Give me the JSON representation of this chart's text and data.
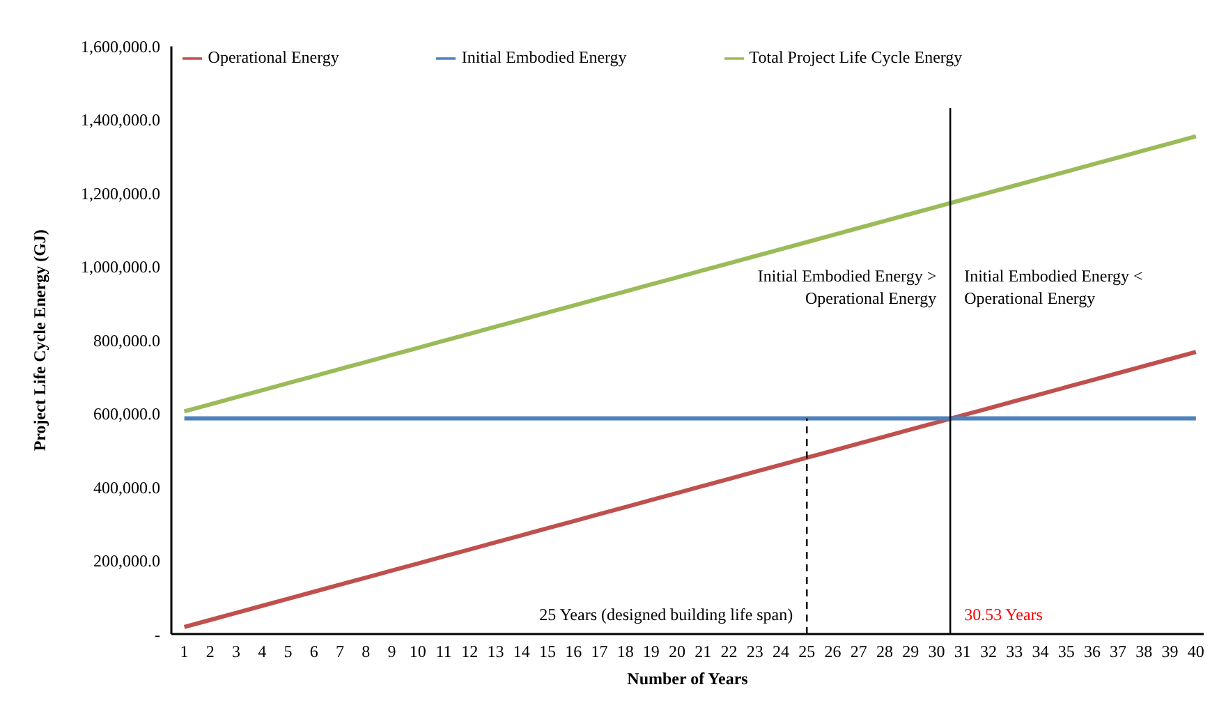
{
  "chart_data": {
    "type": "line",
    "xlabel": "Number of Years",
    "ylabel": "Project Life Cycle Energy (GJ)",
    "x": [
      1,
      2,
      3,
      4,
      5,
      6,
      7,
      8,
      9,
      10,
      11,
      12,
      13,
      14,
      15,
      16,
      17,
      18,
      19,
      20,
      21,
      22,
      23,
      24,
      25,
      26,
      27,
      28,
      29,
      30,
      31,
      32,
      33,
      34,
      35,
      36,
      37,
      38,
      39,
      40
    ],
    "xlim": [
      0.5,
      40.3
    ],
    "xticks": [
      1,
      2,
      3,
      4,
      5,
      6,
      7,
      8,
      9,
      10,
      11,
      12,
      13,
      14,
      15,
      16,
      17,
      18,
      19,
      20,
      21,
      22,
      23,
      24,
      25,
      26,
      27,
      28,
      29,
      30,
      31,
      32,
      33,
      34,
      35,
      36,
      37,
      38,
      39,
      40
    ],
    "ylim": [
      0,
      1600000
    ],
    "yticks": [
      {
        "value": 0,
        "label": "-"
      },
      {
        "value": 200000,
        "label": "200,000.0"
      },
      {
        "value": 400000,
        "label": "400,000.0"
      },
      {
        "value": 600000,
        "label": "600,000.0"
      },
      {
        "value": 800000,
        "label": "800,000.0"
      },
      {
        "value": 1000000,
        "label": "1,000,000.0"
      },
      {
        "value": 1200000,
        "label": "1,200,000.0"
      },
      {
        "value": 1400000,
        "label": "1,400,000.0"
      },
      {
        "value": 1600000,
        "label": "1,600,000.0"
      }
    ],
    "series": [
      {
        "name": "Operational Energy",
        "color": "#c0504d",
        "values": [
          19200,
          38400,
          57600,
          76800,
          96000,
          115200,
          134400,
          153600,
          172800,
          192000,
          211200,
          230400,
          249600,
          268800,
          288000,
          307200,
          326400,
          345600,
          364800,
          384000,
          403200,
          422400,
          441600,
          460800,
          480000,
          499200,
          518400,
          537600,
          556800,
          576000,
          595200,
          614400,
          633600,
          652800,
          672000,
          691200,
          710400,
          729600,
          748800,
          768000
        ]
      },
      {
        "name": "Initial Embodied Energy",
        "color": "#4f81bd",
        "values": [
          587000,
          587000,
          587000,
          587000,
          587000,
          587000,
          587000,
          587000,
          587000,
          587000,
          587000,
          587000,
          587000,
          587000,
          587000,
          587000,
          587000,
          587000,
          587000,
          587000,
          587000,
          587000,
          587000,
          587000,
          587000,
          587000,
          587000,
          587000,
          587000,
          587000,
          587000,
          587000,
          587000,
          587000,
          587000,
          587000,
          587000,
          587000,
          587000,
          587000
        ]
      },
      {
        "name": "Total Project Life Cycle Energy",
        "color": "#9bbb59",
        "values": [
          606200,
          625400,
          644600,
          663800,
          683000,
          702200,
          721400,
          740600,
          759800,
          779000,
          798200,
          817400,
          836600,
          855800,
          875000,
          894200,
          913400,
          932600,
          951800,
          971000,
          990200,
          1009400,
          1028600,
          1047800,
          1067000,
          1086200,
          1105400,
          1124600,
          1143800,
          1163000,
          1182200,
          1201400,
          1220600,
          1239800,
          1259000,
          1278200,
          1297400,
          1316600,
          1335800,
          1355000
        ]
      }
    ],
    "ref_lines": [
      {
        "axis": "x",
        "value": 25,
        "label": "25 Years (designed building life span)",
        "color": "#000000",
        "line_style": "dashed"
      },
      {
        "axis": "x",
        "value": 30.53,
        "label": "30.53 Years",
        "color": "#000000",
        "line_style": "solid"
      }
    ],
    "annotations": [
      "Initial Embodied Energy > Operational Energy",
      "Initial Embodied Energy < Operational Energy"
    ],
    "legend": "top",
    "grid": false,
    "marker": "none",
    "line_style": "solid"
  }
}
